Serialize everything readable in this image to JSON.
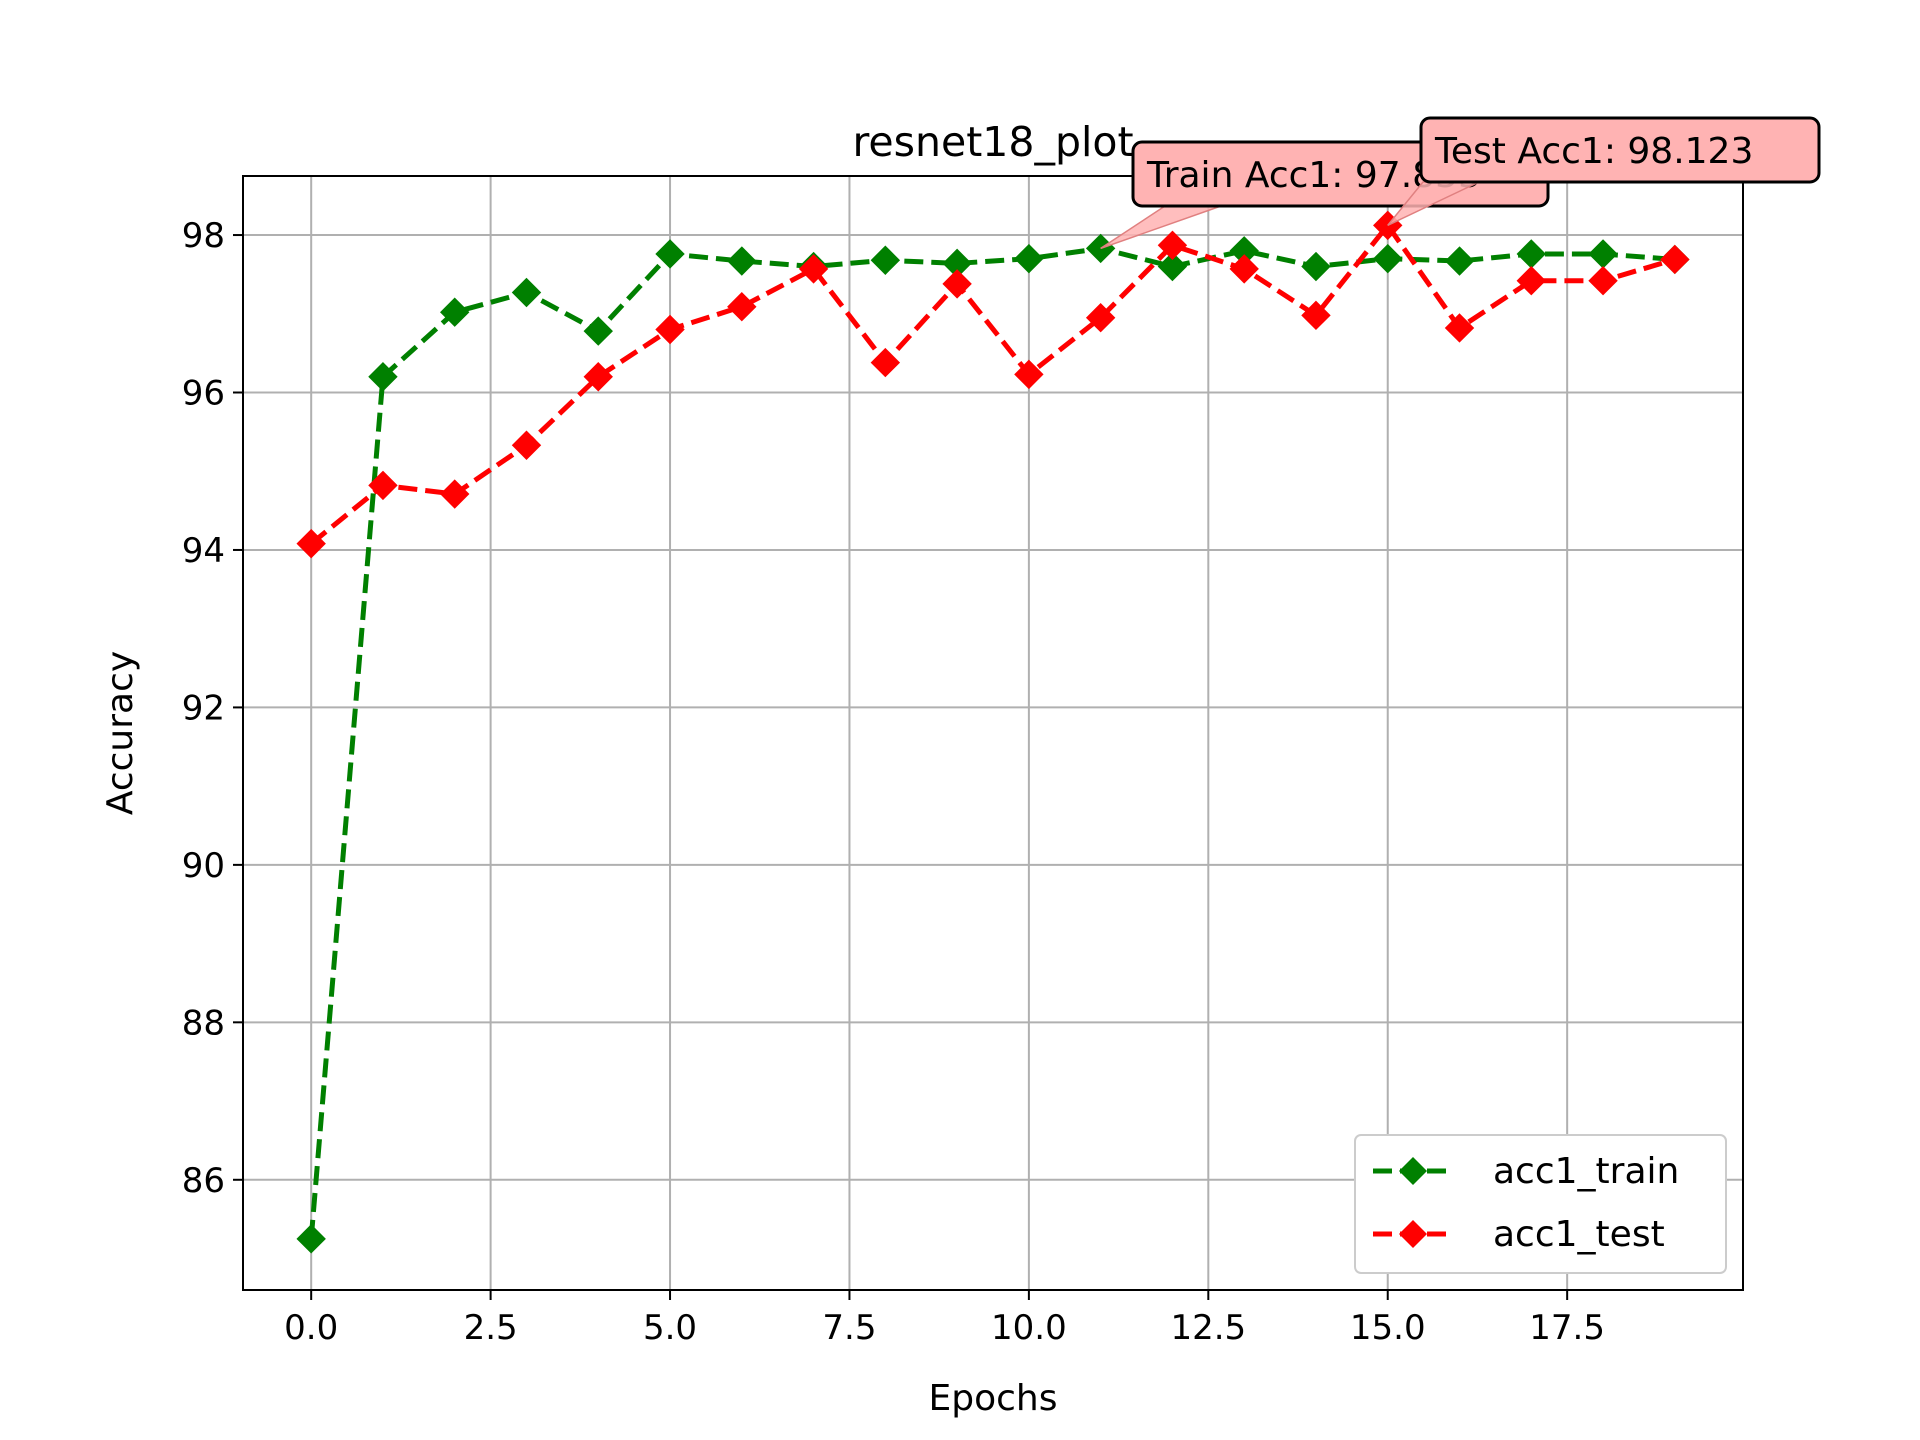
{
  "chart_data": {
    "type": "line",
    "title": "resnet18_plot",
    "xlabel": "Epochs",
    "ylabel": "Accuracy",
    "xlim": [
      -0.95,
      19.95
    ],
    "ylim": [
      84.6,
      98.75
    ],
    "xticks": [
      0.0,
      2.5,
      5.0,
      7.5,
      10.0,
      12.5,
      15.0,
      17.5
    ],
    "xtick_labels": [
      "0.0",
      "2.5",
      "5.0",
      "7.5",
      "10.0",
      "12.5",
      "15.0",
      "17.5"
    ],
    "yticks": [
      86,
      88,
      90,
      92,
      94,
      96,
      98
    ],
    "ytick_labels": [
      "86",
      "88",
      "90",
      "92",
      "94",
      "96",
      "98"
    ],
    "grid": true,
    "legend_position": "lower-right",
    "x": [
      0,
      1,
      2,
      3,
      4,
      5,
      6,
      7,
      8,
      9,
      10,
      11,
      12,
      13,
      14,
      15,
      16,
      17,
      18,
      19
    ],
    "series": [
      {
        "name": "acc1_train",
        "color": "#008000",
        "marker": "diamond",
        "linestyle": "dashed",
        "values": [
          85.25,
          96.2,
          97.02,
          97.27,
          96.78,
          97.76,
          97.67,
          97.6,
          97.68,
          97.64,
          97.7,
          97.83,
          97.6,
          97.8,
          97.6,
          97.7,
          97.67,
          97.76,
          97.76,
          97.69
        ]
      },
      {
        "name": "acc1_test",
        "color": "#ff0000",
        "marker": "diamond",
        "linestyle": "dashed",
        "values": [
          94.08,
          94.82,
          94.71,
          95.33,
          96.2,
          96.8,
          97.09,
          97.57,
          96.38,
          97.38,
          96.23,
          96.95,
          97.87,
          97.57,
          96.98,
          98.123,
          96.82,
          97.42,
          97.42,
          97.69
        ]
      }
    ],
    "annotations": [
      {
        "text": "Train Acc1: 97.833",
        "x": 11,
        "y": 97.83,
        "facecolor": "#ffb3b3"
      },
      {
        "text": "Test Acc1: 98.123",
        "x": 15,
        "y": 98.123,
        "facecolor": "#ffb3b3"
      }
    ]
  }
}
